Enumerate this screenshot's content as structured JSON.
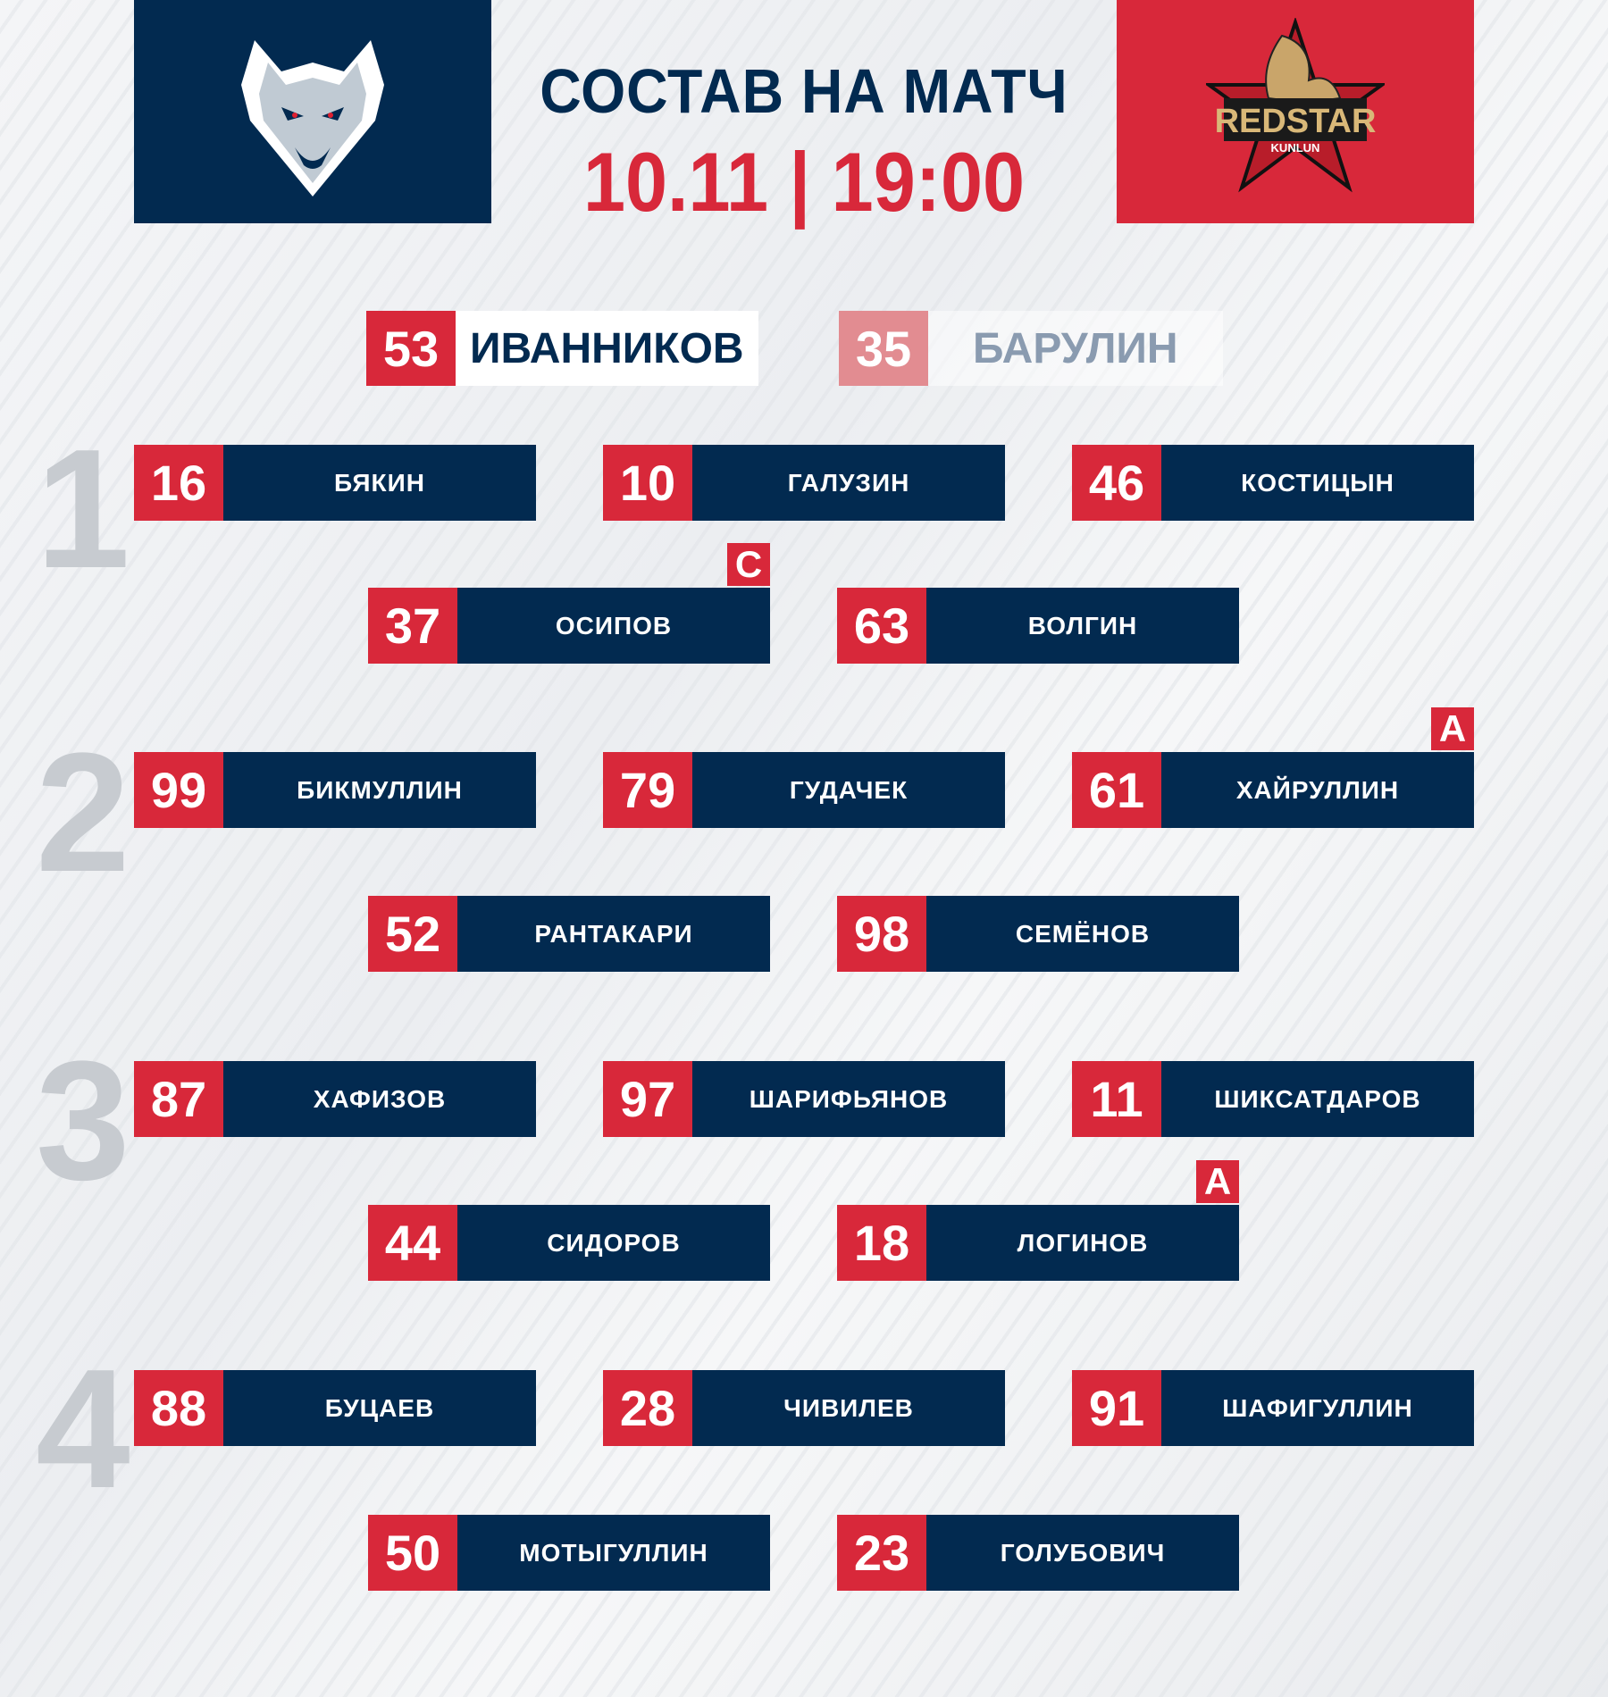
{
  "header": {
    "title": "СОСТАВ НА МАТЧ",
    "date_time": "10.11 | 19:00",
    "home_logo": {
      "icon": "wolf-logo-icon"
    },
    "away_logo": {
      "icon": "redstar-logo-icon",
      "lettering": "REDSTAR KUNLUN"
    }
  },
  "colors": {
    "navy": "#022a50",
    "red": "#d8283a",
    "grey": "#c7cbd0"
  },
  "goalies": [
    {
      "number": "53",
      "name": "ИВАННИКОВ",
      "starting": true
    },
    {
      "number": "35",
      "name": "БАРУЛИН",
      "starting": false
    }
  ],
  "lines": [
    {
      "label": "1",
      "forwards": [
        {
          "number": "16",
          "name": "БЯКИН"
        },
        {
          "number": "10",
          "name": "ГАЛУЗИН"
        },
        {
          "number": "46",
          "name": "КОСТИЦЫН"
        }
      ],
      "defense": [
        {
          "number": "37",
          "name": "ОСИПОВ",
          "badge": "С"
        },
        {
          "number": "63",
          "name": "ВОЛГИН"
        }
      ]
    },
    {
      "label": "2",
      "forwards": [
        {
          "number": "99",
          "name": "БИКМУЛЛИН"
        },
        {
          "number": "79",
          "name": "ГУДАЧЕК"
        },
        {
          "number": "61",
          "name": "ХАЙРУЛЛИН",
          "badge": "А"
        }
      ],
      "defense": [
        {
          "number": "52",
          "name": "РАНТАКАРИ"
        },
        {
          "number": "98",
          "name": "СЕМЁНОВ"
        }
      ]
    },
    {
      "label": "3",
      "forwards": [
        {
          "number": "87",
          "name": "ХАФИЗОВ"
        },
        {
          "number": "97",
          "name": "ШАРИФЬЯНОВ"
        },
        {
          "number": "11",
          "name": "ШИКСАТДАРОВ"
        }
      ],
      "defense": [
        {
          "number": "44",
          "name": "СИДОРОВ"
        },
        {
          "number": "18",
          "name": "ЛОГИНОВ",
          "badge": "А"
        }
      ]
    },
    {
      "label": "4",
      "forwards": [
        {
          "number": "88",
          "name": "БУЦАЕВ"
        },
        {
          "number": "28",
          "name": "ЧИВИЛЕВ"
        },
        {
          "number": "91",
          "name": "ШАФИГУЛЛИН"
        }
      ],
      "defense": [
        {
          "number": "50",
          "name": "МОТЫГУЛЛИН"
        },
        {
          "number": "23",
          "name": "ГОЛУБОВИЧ"
        }
      ]
    }
  ]
}
